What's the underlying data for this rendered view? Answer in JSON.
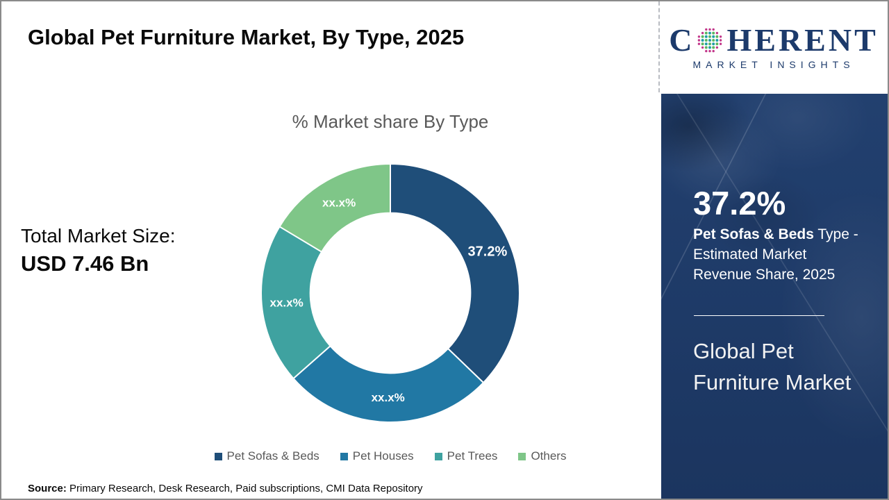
{
  "header": {
    "title": "Global Pet Furniture Market, By Type, 2025"
  },
  "logo": {
    "word_start": "C",
    "word_end": "HERENT",
    "subtitle": "MARKET INSIGHTS",
    "navy": "#1c3a6b",
    "globe_dot_colors": {
      "outer": "#c2378a",
      "teal": "#1e9ea6",
      "green": "#5cb560"
    }
  },
  "left_panel": {
    "label": "Total Market Size:",
    "value": "USD 7.46 Bn"
  },
  "chart_data": {
    "type": "pie",
    "donut": true,
    "title": "% Market share By Type",
    "categories": [
      "Pet Sofas & Beds",
      "Pet Houses",
      "Pet Trees",
      "Others"
    ],
    "values": [
      37.2,
      26.3,
      20.1,
      16.4
    ],
    "slice_labels": [
      "37.2%",
      "xx.x%",
      "xx.x%",
      "xx.x%"
    ],
    "colors": [
      "#1F4E79",
      "#2178A4",
      "#3FA2A0",
      "#7FC688"
    ],
    "start_angle_deg": 0,
    "direction": "clockwise",
    "legend_position": "bottom",
    "hole_radius_ratio": 0.62
  },
  "sidebar": {
    "stat_value": "37.2%",
    "stat_bold": "Pet Sofas & Beds",
    "stat_rest": " Type - Estimated Market Revenue Share, 2025",
    "market_name": "Global Pet Furniture Market",
    "bg_color": "#1e3a67"
  },
  "source": {
    "label": "Source:",
    "text": " Primary Research, Desk Research, Paid subscriptions, CMI Data Repository"
  }
}
